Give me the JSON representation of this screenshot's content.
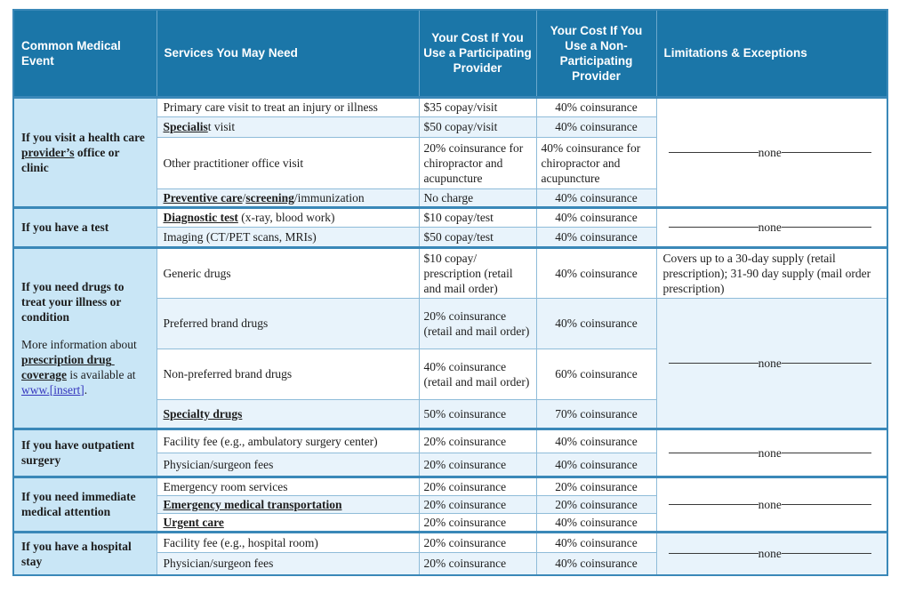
{
  "colors": {
    "header_bg": "#1b76a8",
    "header_text": "#ffffff",
    "event_bg": "#c9e6f6",
    "row_shade": "#e8f3fb",
    "grid_line": "#8fbcd9",
    "accent_border": "#3a88b8",
    "header_grid": "#6aa7cc",
    "text": "#1d1d1d",
    "link": "#3434bd",
    "rule": "#3a3a3a"
  },
  "table": {
    "headers": [
      {
        "label": "Common Medical Event"
      },
      {
        "label": "Services You May Need"
      },
      {
        "label": "Your Cost If You Use a Participating Provider"
      },
      {
        "label": "Your Cost If You Use a Non-Participating Provider"
      },
      {
        "label": "Limitations & Exceptions"
      }
    ],
    "sections": [
      {
        "event": [
          {
            "segments": [
              {
                "t": "If you visit a health care ",
                "s": "b"
              },
              {
                "t": "provider’s",
                "s": "bu"
              },
              {
                "t": " office or clinic",
                "s": "b"
              }
            ]
          }
        ],
        "rows": [
          {
            "service": [
              {
                "t": "Primary care visit to treat an injury or illness",
                "s": "p"
              }
            ],
            "participating": "$35 copay/visit",
            "non_participating": "40% coinsurance"
          },
          {
            "service": [
              {
                "t": "Specialis",
                "s": "bu"
              },
              {
                "t": "t visit",
                "s": "p"
              }
            ],
            "participating": "$50 copay/visit",
            "non_participating": "40% coinsurance"
          },
          {
            "service": [
              {
                "t": "Other practitioner office visit",
                "s": "p"
              }
            ],
            "participating": "20% coinsurance for chiropractor and acupuncture",
            "non_participating": "40% coinsurance for chiropractor and acupuncture"
          },
          {
            "service": [
              {
                "t": "Preventive care",
                "s": "bu"
              },
              {
                "t": "/",
                "s": "p"
              },
              {
                "t": "screening",
                "s": "bu"
              },
              {
                "t": "/immunization",
                "s": "p"
              }
            ],
            "participating": "No charge",
            "non_participating": "40% coinsurance"
          }
        ],
        "limitations": [
          {
            "text": "none",
            "dashes": true,
            "span": 4,
            "shade": false
          }
        ]
      },
      {
        "event": [
          {
            "segments": [
              {
                "t": "If you have a test",
                "s": "b"
              }
            ]
          }
        ],
        "rows": [
          {
            "service": [
              {
                "t": "Diagnostic test",
                "s": "bu"
              },
              {
                "t": " (x-ray, blood work)",
                "s": "p"
              }
            ],
            "participating": "$10 copay/test",
            "non_participating": "40% coinsurance"
          },
          {
            "service": [
              {
                "t": "Imaging (CT/PET scans, MRIs)",
                "s": "p"
              }
            ],
            "participating": "$50 copay/test",
            "non_participating": "40% coinsurance"
          }
        ],
        "limitations": [
          {
            "text": "none",
            "dashes": true,
            "span": 2,
            "shade": false
          }
        ]
      },
      {
        "event": [
          {
            "segments": [
              {
                "t": "If you need drugs to treat your illness or condition",
                "s": "b"
              }
            ]
          },
          {
            "segments": [
              {
                "t": "More information about ",
                "s": "p"
              },
              {
                "t": "prescription drug coverage",
                "s": "bu"
              },
              {
                "t": " is available at ",
                "s": "p"
              },
              {
                "t": "www.[insert]",
                "s": "link"
              },
              {
                "t": ".",
                "s": "p"
              }
            ]
          }
        ],
        "rows": [
          {
            "service": [
              {
                "t": "Generic drugs",
                "s": "p"
              }
            ],
            "participating": "$10 copay/ prescription (retail and mail order)",
            "non_participating": "40% coinsurance"
          },
          {
            "service": [
              {
                "t": "Preferred brand drugs",
                "s": "p"
              }
            ],
            "participating": "20% coinsurance (retail and mail order)",
            "non_participating": "40% coinsurance"
          },
          {
            "service": [
              {
                "t": "Non-preferred brand drugs",
                "s": "p"
              }
            ],
            "participating": "40% coinsurance (retail and mail order)",
            "non_participating": "60% coinsurance"
          },
          {
            "service": [
              {
                "t": "Specialty drugs",
                "s": "bu"
              }
            ],
            "participating": "50% coinsurance",
            "non_participating": "70% coinsurance"
          }
        ],
        "limitations": [
          {
            "text": "Covers up to a 30-day supply (retail prescription); 31-90 day supply (mail order prescription)",
            "dashes": false,
            "span": 1,
            "shade": false
          },
          {
            "text": "none",
            "dashes": true,
            "span": 3,
            "shade": true
          }
        ]
      },
      {
        "event": [
          {
            "segments": [
              {
                "t": "If you have outpatient surgery",
                "s": "b"
              }
            ]
          }
        ],
        "rows": [
          {
            "service": [
              {
                "t": "Facility fee (e.g., ambulatory surgery center)",
                "s": "p"
              }
            ],
            "participating": "20% coinsurance",
            "non_participating": "40% coinsurance"
          },
          {
            "service": [
              {
                "t": "Physician/surgeon fees",
                "s": "p"
              }
            ],
            "participating": "20% coinsurance",
            "non_participating": "40% coinsurance"
          }
        ],
        "limitations": [
          {
            "text": "none",
            "dashes": true,
            "span": 2,
            "shade": false
          }
        ]
      },
      {
        "event": [
          {
            "segments": [
              {
                "t": "If you need immediate medical attention",
                "s": "b"
              }
            ]
          }
        ],
        "rows": [
          {
            "service": [
              {
                "t": "Emergency room services",
                "s": "p"
              }
            ],
            "participating": "20% coinsurance",
            "non_participating": "20% coinsurance"
          },
          {
            "service": [
              {
                "t": "Emergency medical transportation",
                "s": "bu"
              }
            ],
            "participating": "20% coinsurance",
            "non_participating": "20% coinsurance"
          },
          {
            "service": [
              {
                "t": "Urgent care",
                "s": "bu"
              }
            ],
            "participating": "20% coinsurance",
            "non_participating": "40% coinsurance"
          }
        ],
        "limitations": [
          {
            "text": "none",
            "dashes": true,
            "span": 3,
            "shade": false
          }
        ]
      },
      {
        "event": [
          {
            "segments": [
              {
                "t": "If you have a hospital stay",
                "s": "b"
              }
            ]
          }
        ],
        "rows": [
          {
            "service": [
              {
                "t": "Facility fee (e.g., hospital room)",
                "s": "p"
              }
            ],
            "participating": "20% coinsurance",
            "non_participating": "40% coinsurance"
          },
          {
            "service": [
              {
                "t": "Physician/surgeon fees",
                "s": "p"
              }
            ],
            "participating": "20% coinsurance",
            "non_participating": "40% coinsurance"
          }
        ],
        "limitations": [
          {
            "text": "none",
            "dashes": true,
            "span": 2,
            "shade": true
          }
        ]
      }
    ]
  }
}
